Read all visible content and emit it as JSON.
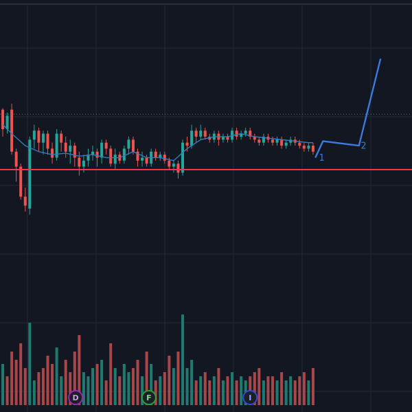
{
  "theme": {
    "background": "#131722",
    "grid": "#232838",
    "top_line": "#2a2e39",
    "up_color": "#26a69a",
    "down_color": "#ef5350",
    "ma_color": "#2f7dbf",
    "support_color": "#f23645",
    "dotted_color": "#6b7080",
    "wave_color": "#3d7ae0",
    "volume_up": "#1f7a70",
    "volume_down": "#a8474a"
  },
  "chart_data": {
    "type": "candlestick",
    "grid": true,
    "price_range": [
      -70,
      72
    ],
    "support_level": -32,
    "dotted_level": 5,
    "candles": [
      [
        0,
        8,
        -5,
        9,
        -10
      ],
      [
        1,
        -5,
        4,
        6,
        -8
      ],
      [
        2,
        8,
        -20,
        12,
        -22
      ],
      [
        3,
        -20,
        -30,
        -18,
        -40
      ],
      [
        4,
        -30,
        -50,
        -28,
        -52
      ],
      [
        5,
        -50,
        -56,
        -44,
        -60
      ],
      [
        6,
        -58,
        -12,
        -10,
        -62
      ],
      [
        7,
        -12,
        -6,
        -2,
        -18
      ],
      [
        8,
        -6,
        -14,
        -4,
        -20
      ],
      [
        9,
        -14,
        -8,
        -6,
        -22
      ],
      [
        10,
        -8,
        -18,
        -6,
        -22
      ],
      [
        11,
        -18,
        -24,
        -14,
        -28
      ],
      [
        12,
        -24,
        -8,
        -5,
        -26
      ],
      [
        13,
        -8,
        -14,
        -6,
        -20
      ],
      [
        14,
        -14,
        -20,
        -10,
        -24
      ],
      [
        15,
        -20,
        -16,
        -12,
        -28
      ],
      [
        16,
        -16,
        -24,
        -14,
        -30
      ],
      [
        17,
        -24,
        -30,
        -20,
        -36
      ],
      [
        18,
        -30,
        -26,
        -22,
        -34
      ],
      [
        19,
        -26,
        -22,
        -18,
        -30
      ],
      [
        20,
        -22,
        -20,
        -16,
        -26
      ],
      [
        21,
        -20,
        -24,
        -18,
        -30
      ],
      [
        22,
        -24,
        -14,
        -12,
        -28
      ],
      [
        23,
        -14,
        -18,
        -12,
        -22
      ],
      [
        24,
        -18,
        -28,
        -16,
        -30
      ],
      [
        25,
        -28,
        -22,
        -18,
        -32
      ],
      [
        26,
        -22,
        -26,
        -20,
        -28
      ],
      [
        27,
        -26,
        -18,
        -16,
        -28
      ],
      [
        28,
        -18,
        -12,
        -10,
        -22
      ],
      [
        29,
        -12,
        -20,
        -10,
        -22
      ],
      [
        30,
        -20,
        -26,
        -18,
        -30
      ],
      [
        31,
        -26,
        -24,
        -20,
        -30
      ],
      [
        32,
        -24,
        -28,
        -22,
        -30
      ],
      [
        33,
        -28,
        -20,
        -18,
        -30
      ],
      [
        34,
        -20,
        -24,
        -18,
        -26
      ],
      [
        35,
        -24,
        -22,
        -20,
        -26
      ],
      [
        36,
        -22,
        -26,
        -20,
        -28
      ],
      [
        37,
        -26,
        -30,
        -24,
        -32
      ],
      [
        38,
        -30,
        -28,
        -26,
        -34
      ],
      [
        39,
        -28,
        -34,
        -26,
        -38
      ],
      [
        40,
        -34,
        -14,
        -12,
        -36
      ],
      [
        41,
        -14,
        -16,
        -10,
        -20
      ],
      [
        42,
        -16,
        -6,
        -2,
        -18
      ],
      [
        43,
        -6,
        -10,
        -4,
        -14
      ],
      [
        44,
        -10,
        -6,
        -2,
        -12
      ],
      [
        45,
        -6,
        -10,
        -4,
        -12
      ],
      [
        46,
        -10,
        -12,
        -8,
        -14
      ],
      [
        47,
        -12,
        -8,
        -6,
        -14
      ],
      [
        48,
        -8,
        -12,
        -6,
        -16
      ],
      [
        49,
        -12,
        -10,
        -8,
        -14
      ],
      [
        50,
        -10,
        -12,
        -8,
        -14
      ],
      [
        51,
        -12,
        -6,
        -4,
        -14
      ],
      [
        52,
        -6,
        -10,
        -4,
        -12
      ],
      [
        53,
        -10,
        -8,
        -6,
        -12
      ],
      [
        54,
        -8,
        -6,
        -4,
        -10
      ],
      [
        55,
        -6,
        -10,
        -4,
        -12
      ],
      [
        56,
        -10,
        -12,
        -8,
        -14
      ],
      [
        57,
        -12,
        -14,
        -10,
        -16
      ],
      [
        58,
        -14,
        -10,
        -8,
        -16
      ],
      [
        59,
        -10,
        -12,
        -8,
        -14
      ],
      [
        60,
        -12,
        -14,
        -10,
        -16
      ],
      [
        61,
        -14,
        -12,
        -10,
        -16
      ],
      [
        62,
        -12,
        -16,
        -10,
        -18
      ],
      [
        63,
        -16,
        -14,
        -12,
        -18
      ],
      [
        64,
        -14,
        -12,
        -10,
        -16
      ],
      [
        65,
        -12,
        -14,
        -10,
        -16
      ],
      [
        66,
        -14,
        -16,
        -12,
        -18
      ],
      [
        67,
        -16,
        -18,
        -14,
        -20
      ],
      [
        68,
        -18,
        -16,
        -14,
        -20
      ],
      [
        69,
        -16,
        -20,
        -14,
        -22
      ]
    ],
    "ma_line": [
      [
        0,
        -2
      ],
      [
        2,
        -8
      ],
      [
        5,
        -16
      ],
      [
        8,
        -20
      ],
      [
        11,
        -22
      ],
      [
        14,
        -21
      ],
      [
        17,
        -23
      ],
      [
        20,
        -22
      ],
      [
        23,
        -24
      ],
      [
        26,
        -24
      ],
      [
        29,
        -20
      ],
      [
        32,
        -24
      ],
      [
        35,
        -24
      ],
      [
        38,
        -26
      ],
      [
        41,
        -18
      ],
      [
        44,
        -12
      ],
      [
        47,
        -10
      ],
      [
        50,
        -10
      ],
      [
        53,
        -8
      ],
      [
        56,
        -10
      ],
      [
        59,
        -11
      ],
      [
        62,
        -12
      ],
      [
        65,
        -13
      ],
      [
        68,
        -14
      ],
      [
        69,
        -14
      ]
    ],
    "volume": [
      [
        0,
        20,
        "up"
      ],
      [
        1,
        14,
        "down"
      ],
      [
        2,
        26,
        "down"
      ],
      [
        3,
        22,
        "down"
      ],
      [
        4,
        30,
        "down"
      ],
      [
        5,
        18,
        "down"
      ],
      [
        6,
        40,
        "up"
      ],
      [
        7,
        12,
        "up"
      ],
      [
        8,
        16,
        "down"
      ],
      [
        9,
        18,
        "down"
      ],
      [
        10,
        24,
        "down"
      ],
      [
        11,
        20,
        "down"
      ],
      [
        12,
        28,
        "up"
      ],
      [
        13,
        14,
        "up"
      ],
      [
        14,
        22,
        "down"
      ],
      [
        15,
        16,
        "down"
      ],
      [
        16,
        26,
        "down"
      ],
      [
        17,
        34,
        "down"
      ],
      [
        18,
        16,
        "up"
      ],
      [
        19,
        14,
        "up"
      ],
      [
        20,
        18,
        "up"
      ],
      [
        21,
        20,
        "down"
      ],
      [
        22,
        22,
        "up"
      ],
      [
        23,
        12,
        "down"
      ],
      [
        24,
        30,
        "down"
      ],
      [
        25,
        18,
        "up"
      ],
      [
        26,
        14,
        "down"
      ],
      [
        27,
        20,
        "up"
      ],
      [
        28,
        16,
        "up"
      ],
      [
        29,
        18,
        "down"
      ],
      [
        30,
        22,
        "down"
      ],
      [
        31,
        14,
        "up"
      ],
      [
        32,
        26,
        "down"
      ],
      [
        33,
        20,
        "up"
      ],
      [
        34,
        12,
        "down"
      ],
      [
        35,
        14,
        "up"
      ],
      [
        36,
        16,
        "down"
      ],
      [
        37,
        24,
        "down"
      ],
      [
        38,
        18,
        "up"
      ],
      [
        39,
        26,
        "down"
      ],
      [
        40,
        44,
        "up"
      ],
      [
        41,
        18,
        "up"
      ],
      [
        42,
        22,
        "up"
      ],
      [
        43,
        12,
        "down"
      ],
      [
        44,
        14,
        "up"
      ],
      [
        45,
        16,
        "down"
      ],
      [
        46,
        12,
        "down"
      ],
      [
        47,
        14,
        "up"
      ],
      [
        48,
        18,
        "down"
      ],
      [
        49,
        12,
        "up"
      ],
      [
        50,
        14,
        "down"
      ],
      [
        51,
        16,
        "up"
      ],
      [
        52,
        12,
        "down"
      ],
      [
        53,
        14,
        "up"
      ],
      [
        54,
        12,
        "up"
      ],
      [
        55,
        14,
        "down"
      ],
      [
        56,
        16,
        "down"
      ],
      [
        57,
        18,
        "down"
      ],
      [
        58,
        12,
        "up"
      ],
      [
        59,
        14,
        "down"
      ],
      [
        60,
        14,
        "down"
      ],
      [
        61,
        12,
        "up"
      ],
      [
        62,
        16,
        "down"
      ],
      [
        63,
        12,
        "up"
      ],
      [
        64,
        14,
        "up"
      ],
      [
        65,
        12,
        "down"
      ],
      [
        66,
        14,
        "down"
      ],
      [
        67,
        16,
        "down"
      ],
      [
        68,
        12,
        "up"
      ],
      [
        69,
        18,
        "down"
      ]
    ],
    "volume_max": 50,
    "wave_path": [
      [
        69.5,
        -24
      ],
      [
        71.2,
        -13
      ],
      [
        79.2,
        -16
      ],
      [
        84.0,
        42
      ]
    ],
    "wave_labels": [
      {
        "text": "1",
        "x": 70.3,
        "y": -26
      },
      {
        "text": "2",
        "x": 79.6,
        "y": -18
      }
    ],
    "event_markers": [
      {
        "letter": "D",
        "x": 16.2,
        "color": "#9c27b0",
        "text_color": "#d29be0"
      },
      {
        "letter": "F",
        "x": 32.5,
        "color": "#2e9e2e",
        "text_color": "#7fdc7f"
      },
      {
        "letter": "I",
        "x": 55.0,
        "color": "#3949c9",
        "text_color": "#9aa6ff"
      }
    ]
  }
}
